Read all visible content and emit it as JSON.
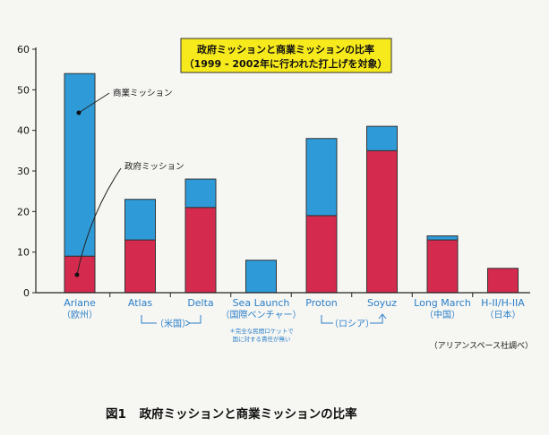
{
  "chart_data": {
    "type": "bar",
    "stacked": true,
    "title": "政府ミッションと商業ミッションの比率",
    "subtitle": "（1999 - 2002年に行われた打上げを対象）",
    "categories": [
      "Ariane",
      "Atlas",
      "Delta",
      "Sea Launch",
      "Proton",
      "Soyuz",
      "Long March",
      "H-II/H-IIA"
    ],
    "category_sublabels": [
      "（欧州）",
      "",
      "",
      "（国際ベンチャー）",
      "",
      "",
      "（中国）",
      "（日本）"
    ],
    "series": [
      {
        "name": "政府ミッション",
        "values": [
          9,
          13,
          21,
          0,
          19,
          35,
          13,
          6
        ]
      },
      {
        "name": "商業ミッション",
        "values": [
          45,
          10,
          7,
          8,
          19,
          6,
          1,
          0
        ]
      }
    ],
    "ylim": [
      0,
      60
    ],
    "yticks": [
      0,
      10,
      20,
      30,
      40,
      50,
      60
    ],
    "grid": false,
    "legend": "callouts",
    "colors": {
      "government": "#d42a4e",
      "commercial": "#2e9ad8",
      "title_box": "#f7ea1c",
      "axis": "#222222",
      "category_text": "#2a7fc8"
    },
    "group_labels": [
      {
        "text": "（米国）",
        "from": 1,
        "to": 2
      },
      {
        "text": "（ロシア）",
        "from": 4,
        "to": 5
      }
    ],
    "annotations": {
      "sea_launch_note_1": "＊完全な民間ロケットで",
      "sea_launch_note_2": "国に対する責任が無い",
      "source": "（アリアンスペース社調べ）"
    }
  },
  "caption": {
    "number": "図1",
    "text": "政府ミッションと商業ミッションの比率"
  }
}
